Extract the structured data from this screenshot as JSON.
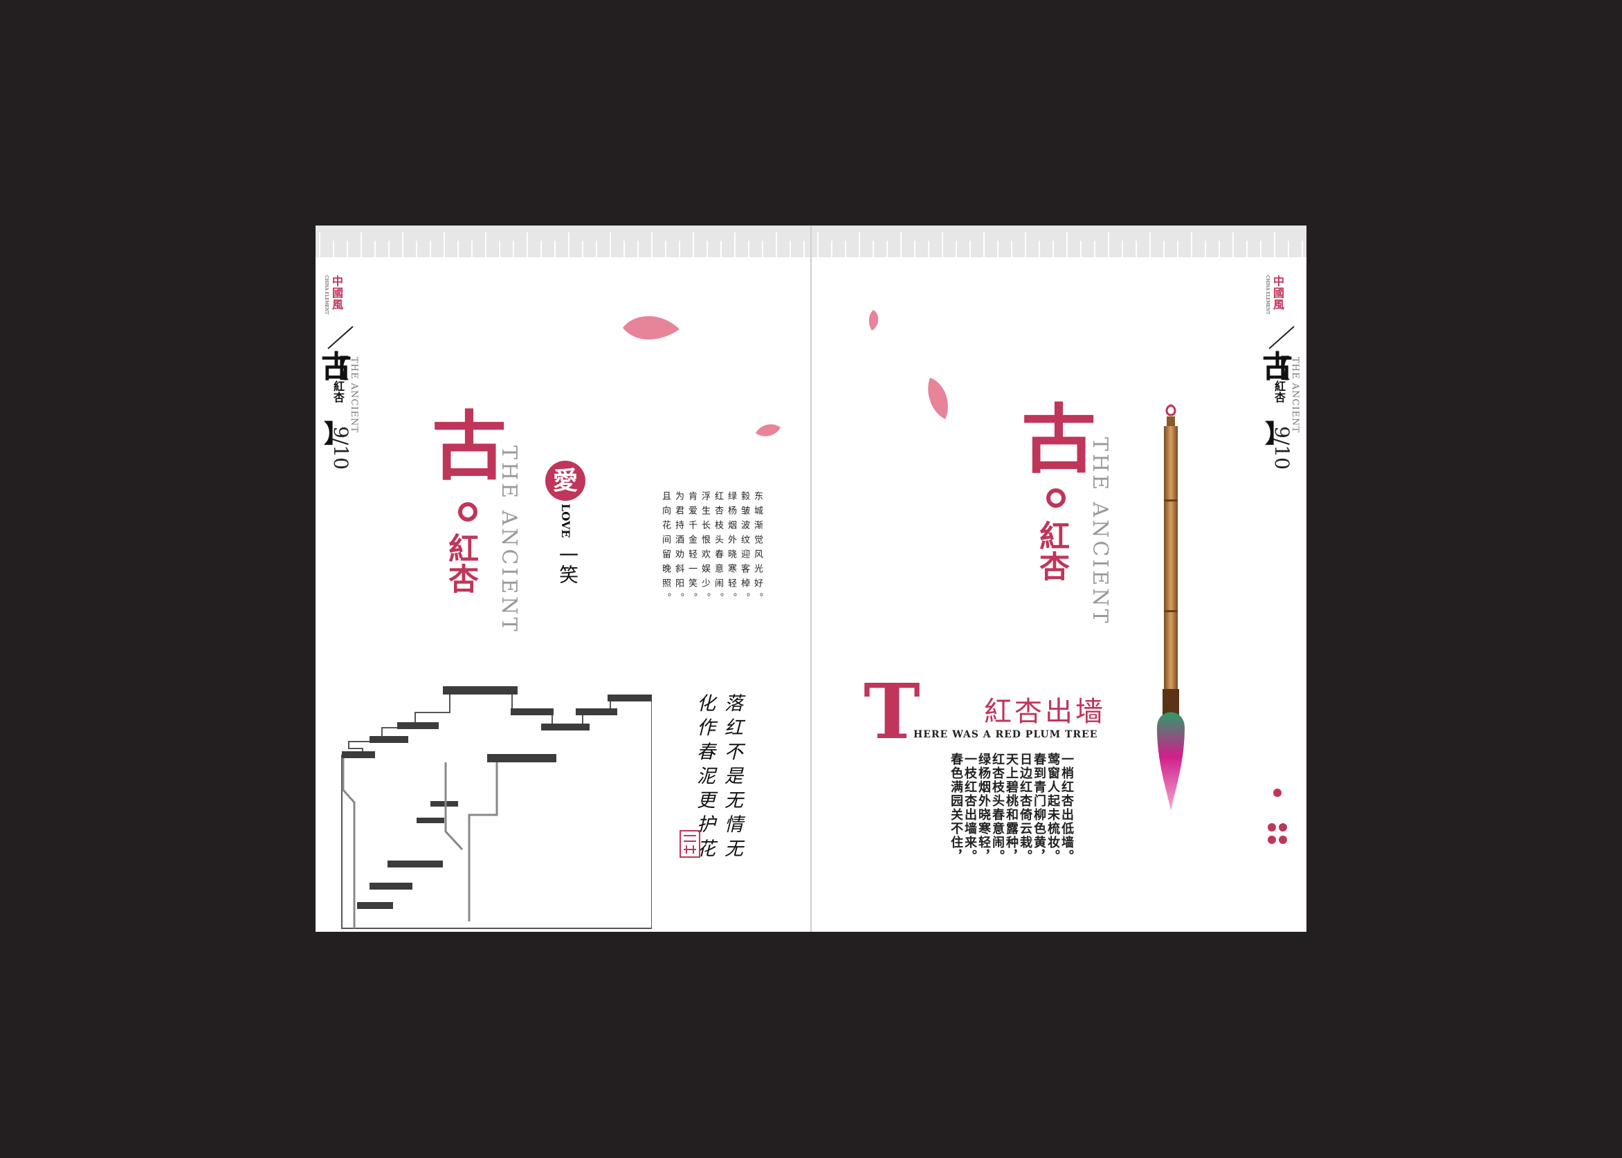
{
  "header": {
    "logo_text": "中國風",
    "logo_sub": "CHINA ELEMENT",
    "title_char": "古",
    "sub_title": "紅杏",
    "sub_en": "THE ANCIENT",
    "page_number": "9/10"
  },
  "left_page": {
    "main_char": "古",
    "main_sub": "紅杏",
    "english": "THE ANCIENT",
    "seal_char": "愛",
    "love_text": "LOVE",
    "yixiao": "一笑",
    "poem_columns": [
      "东城渐觉风光好。",
      "縠皱波纹迎客棹。",
      "绿杨烟外晓寒轻。",
      "红杏枝头春意闹。",
      "浮生长恨欢娱少。",
      "肯爱千金轻一笑。",
      "为君持酒劝斜阳。",
      "且向花间留晚照。"
    ],
    "calligraphy_columns": [
      "落红不是无情无",
      "化作春泥更护花"
    ]
  },
  "right_page": {
    "main_char": "古",
    "main_sub": "紅杏",
    "english": "THE ANCIENT",
    "drop_cap": "T",
    "title_cn": "紅杏出墙",
    "title_en": "HERE WAS A RED PLUM TREE",
    "poem_columns": [
      "一梢红杏出低墙。",
      "莺窗人起未梳妆。",
      "春到青门柳色黄，",
      "日边红杏倚云栽。",
      "天上碧桃和露种，",
      "红杏枝头春意闹。",
      "绿杨烟外晓寒轻，",
      "一枝红杏出墙来。",
      "春色满园关不住，"
    ]
  },
  "colors": {
    "background": "#231f20",
    "accent": "#c0355a",
    "page": "#ffffff"
  }
}
